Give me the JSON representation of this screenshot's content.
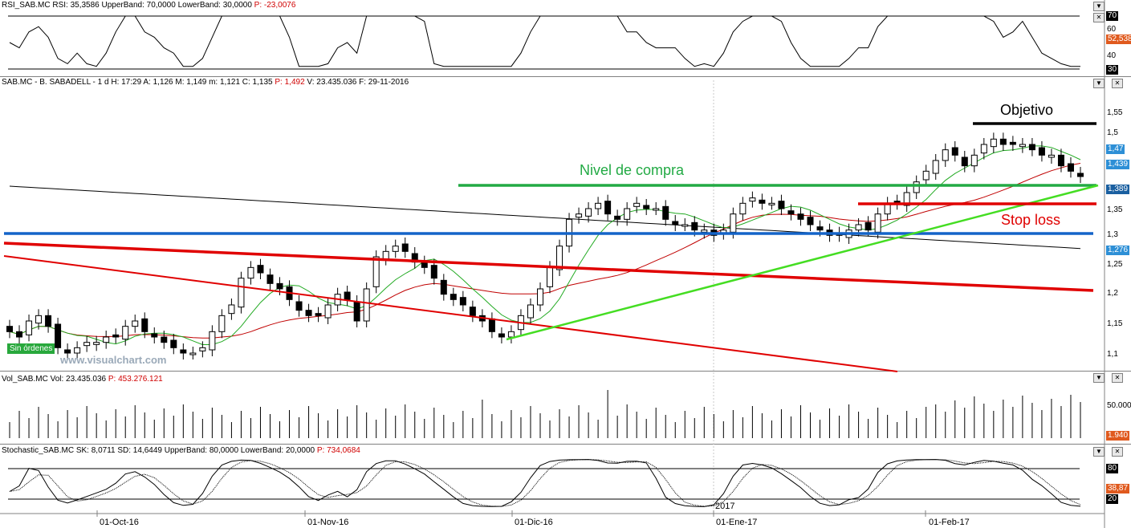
{
  "rsi": {
    "header_name": "RSI_SAB.MC",
    "header_vals": "RSI: 35,3586  UpperBand: 70,0000  LowerBand: 30,0000",
    "header_p": "P: -23,0076",
    "levels": [
      "70",
      "60",
      "40",
      "30"
    ],
    "last_tag": "52,538"
  },
  "price": {
    "header": "SAB.MC - B. SABADELL -  1 d  H: 17:29  A: 1,126  M: 1,149  m: 1,121  C: 1,135",
    "header_p": "P: 1,492",
    "header_tail": "V: 23.435.036  F: 29-11-2016",
    "levels": [
      "1,55",
      "1,5",
      "1,35",
      "1,3",
      "1,25",
      "1,2",
      "1,15",
      "1,1"
    ],
    "tags": [
      "1,47",
      "1,439",
      "1,389",
      "1,276"
    ],
    "watermark": "www.visualchart.com",
    "badge": "Sin órdenes",
    "annotations": {
      "objetivo": "Objetivo",
      "nivel": "Nivel de compra",
      "stop": "Stop loss"
    }
  },
  "volume": {
    "header_name": "Vol_SAB.MC",
    "header_vals": "Vol: 23.435.036",
    "header_p": "P: 453.276.121",
    "level": "50.000...",
    "last_tag": "1.940"
  },
  "stoch": {
    "header_name": "Stochastic_SAB.MC",
    "header_vals": "SK: 8,0711  SD: 14,6449  UpperBand: 80,0000  LowerBand: 20,0000",
    "header_p": "P: 734,0684",
    "levels": [
      "80",
      "20"
    ],
    "last_tag": "38,87"
  },
  "dates": [
    "01-Oct-16",
    "01-Nov-16",
    "01-Dic-16",
    "01-Ene-17",
    "01-Feb-17"
  ],
  "year_label": "2017",
  "colors": {
    "up": "#ffffff",
    "down": "#000000",
    "green_line": "#22aa44",
    "red_line": "#e00000",
    "blue_line": "#1464c8"
  },
  "chart_data": {
    "type": "candlestick",
    "title": "SAB.MC - B. SABADELL",
    "x_labels": [
      "01-Oct-16",
      "01-Nov-16",
      "01-Dic-16",
      "01-Ene-17",
      "01-Feb-17"
    ],
    "close": [
      1.14,
      1.13,
      1.16,
      1.17,
      1.15,
      1.11,
      1.1,
      1.11,
      1.12,
      1.12,
      1.13,
      1.13,
      1.15,
      1.16,
      1.14,
      1.13,
      1.12,
      1.11,
      1.1,
      1.1,
      1.11,
      1.14,
      1.17,
      1.19,
      1.24,
      1.26,
      1.25,
      1.23,
      1.22,
      1.2,
      1.18,
      1.17,
      1.17,
      1.19,
      1.21,
      1.2,
      1.16,
      1.22,
      1.28,
      1.29,
      1.3,
      1.29,
      1.27,
      1.26,
      1.24,
      1.21,
      1.2,
      1.19,
      1.17,
      1.16,
      1.14,
      1.13,
      1.14,
      1.17,
      1.19,
      1.22,
      1.26,
      1.3,
      1.35,
      1.36,
      1.37,
      1.38,
      1.36,
      1.35,
      1.37,
      1.38,
      1.37,
      1.37,
      1.35,
      1.34,
      1.34,
      1.33,
      1.33,
      1.32,
      1.33,
      1.36,
      1.38,
      1.39,
      1.38,
      1.38,
      1.37,
      1.36,
      1.35,
      1.34,
      1.33,
      1.32,
      1.32,
      1.33,
      1.34,
      1.33,
      1.36,
      1.38,
      1.38,
      1.4,
      1.42,
      1.44,
      1.46,
      1.48,
      1.47,
      1.45,
      1.47,
      1.49,
      1.5,
      1.49,
      1.49,
      1.49,
      1.48,
      1.47,
      1.47,
      1.45,
      1.44,
      1.43
    ],
    "volume_axis_label": "50.000...",
    "stochastic_bands": [
      80,
      20
    ],
    "rsi_bands": [
      70,
      30
    ]
  }
}
